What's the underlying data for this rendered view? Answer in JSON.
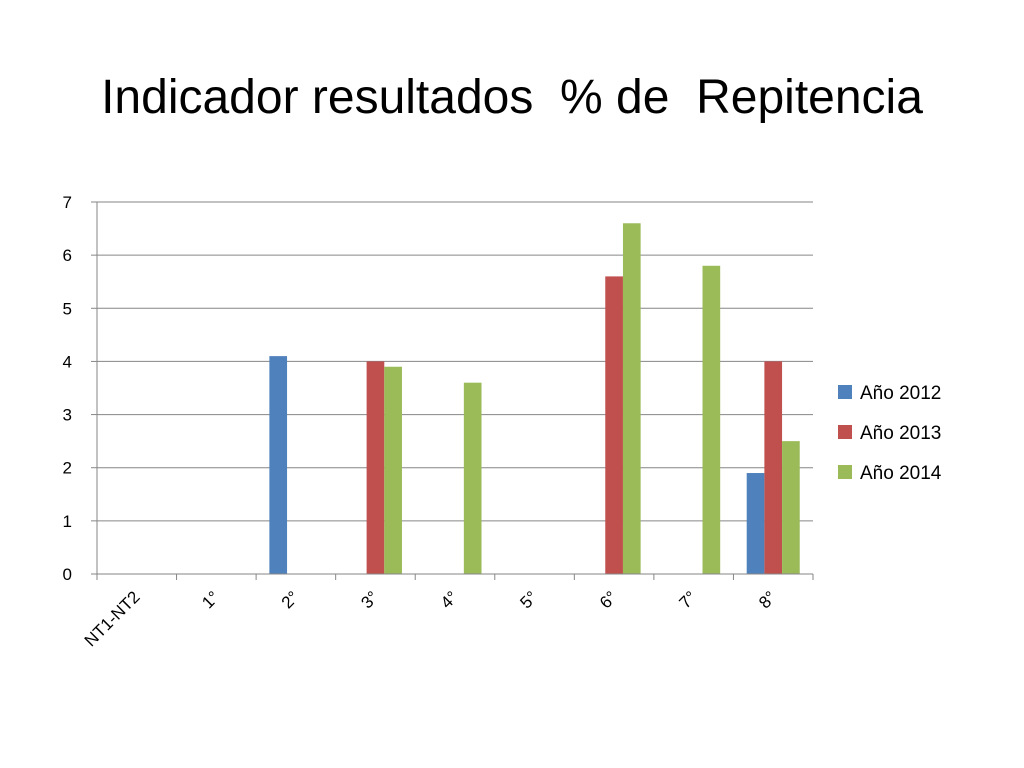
{
  "slide": {
    "title": "Indicador resultados  % de  Repitencia"
  },
  "chart_data": {
    "type": "bar",
    "title": "",
    "xlabel": "",
    "ylabel": "",
    "categories": [
      "NT1-NT2",
      "1°",
      "2°",
      "3°",
      "4°",
      "5°",
      "6°",
      "7°",
      "8°"
    ],
    "ylim": [
      0,
      7
    ],
    "yticks": [
      0,
      1,
      2,
      3,
      4,
      5,
      6,
      7
    ],
    "grid": true,
    "legend": "right",
    "series": [
      {
        "name": "Año 2012",
        "color": "#4F81BD",
        "values": [
          0,
          0,
          4.1,
          0,
          0,
          0,
          0,
          0,
          1.9
        ]
      },
      {
        "name": "Año 2013",
        "color": "#C0504D",
        "values": [
          0,
          0,
          0,
          4.0,
          0,
          0,
          5.6,
          0,
          4.0
        ]
      },
      {
        "name": "Año 2014",
        "color": "#9BBB59",
        "values": [
          0,
          0,
          0,
          3.9,
          3.6,
          0,
          6.6,
          5.8,
          2.5
        ]
      }
    ]
  }
}
